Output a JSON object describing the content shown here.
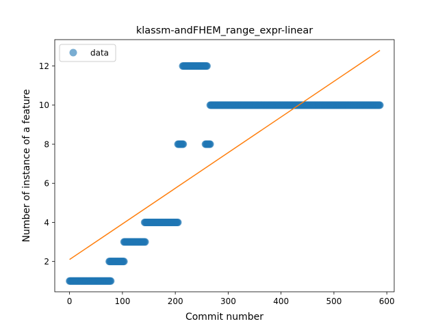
{
  "chart_data": {
    "type": "scatter",
    "title": "klassm-andFHEM_range_expr-linear",
    "xlabel": "Commit number",
    "ylabel": "Number of instance of a feature",
    "xlim": [
      -28,
      614
    ],
    "ylim": [
      0.45,
      13.35
    ],
    "xticks": [
      0,
      100,
      200,
      300,
      400,
      500,
      600
    ],
    "yticks": [
      2,
      4,
      6,
      8,
      10,
      12
    ],
    "grid": false,
    "legend_position": "upper-left",
    "colors": {
      "data": "#1f77b4",
      "fit": "#ff7f0e"
    },
    "series": [
      {
        "name": "data",
        "kind": "points",
        "runs": [
          {
            "x_start": 0,
            "x_end": 78,
            "y": 1
          },
          {
            "x_start": 75,
            "x_end": 103,
            "y": 2
          },
          {
            "x_start": 103,
            "x_end": 143,
            "y": 3
          },
          {
            "x_start": 142,
            "x_end": 205,
            "y": 4
          },
          {
            "x_start": 205,
            "x_end": 215,
            "y": 8
          },
          {
            "x_start": 214,
            "x_end": 260,
            "y": 12
          },
          {
            "x_start": 257,
            "x_end": 266,
            "y": 8
          },
          {
            "x_start": 266,
            "x_end": 587,
            "y": 10
          }
        ]
      },
      {
        "kind": "line",
        "x": [
          0,
          587
        ],
        "y": [
          2.1,
          12.8
        ]
      }
    ]
  }
}
